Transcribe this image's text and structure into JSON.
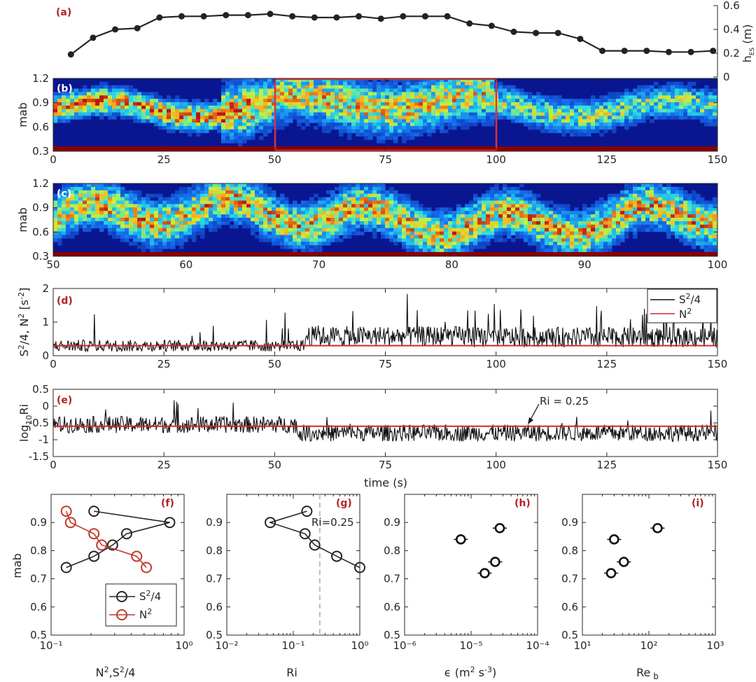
{
  "chart_data": [
    {
      "id": "a",
      "type": "line",
      "panel_label": "(a)",
      "ylabel": "h_ES (m)",
      "ylim": [
        0,
        0.6
      ],
      "yticks": [
        "0",
        "0.2",
        "0.4",
        "0.6"
      ],
      "xlim": [
        0,
        150
      ],
      "series": [
        {
          "x": [
            4,
            9,
            14,
            19,
            24,
            29,
            34,
            39,
            44,
            49,
            54,
            59,
            64,
            69,
            74,
            79,
            84,
            89,
            94,
            99,
            104,
            109,
            114,
            119,
            124,
            129,
            134,
            139,
            144,
            149
          ],
          "values": [
            0.19,
            0.33,
            0.4,
            0.41,
            0.5,
            0.51,
            0.51,
            0.52,
            0.52,
            0.53,
            0.51,
            0.5,
            0.5,
            0.51,
            0.49,
            0.51,
            0.51,
            0.51,
            0.45,
            0.43,
            0.38,
            0.37,
            0.37,
            0.32,
            0.22,
            0.22,
            0.22,
            0.21,
            0.21,
            0.22
          ]
        }
      ]
    },
    {
      "id": "b",
      "type": "heatmap",
      "panel_label": "(b)",
      "ylabel": "mab",
      "xlim": [
        0,
        150
      ],
      "ylim": [
        0.3,
        1.2
      ],
      "xticks": [
        "0",
        "25",
        "50",
        "75",
        "100",
        "125",
        "150"
      ],
      "yticks": [
        "0.3",
        "0.6",
        "0.9",
        "1.2"
      ],
      "highlight_box": [
        50,
        100
      ]
    },
    {
      "id": "c",
      "type": "heatmap",
      "panel_label": "(c)",
      "ylabel": "mab",
      "xlim": [
        50,
        100
      ],
      "ylim": [
        0.3,
        1.2
      ],
      "xticks": [
        "50",
        "60",
        "70",
        "80",
        "90",
        "100"
      ],
      "yticks": [
        "0.3",
        "0.6",
        "0.9",
        "1.2"
      ]
    },
    {
      "id": "d",
      "type": "line",
      "panel_label": "(d)",
      "ylabel": "S²/4, N² [s⁻²]",
      "xlim": [
        0,
        150
      ],
      "ylim": [
        0,
        2
      ],
      "xticks": [
        "0",
        "25",
        "50",
        "75",
        "100",
        "125",
        "150"
      ],
      "yticks": [
        "0",
        "1",
        "2"
      ],
      "legend": [
        "S²/4",
        "N²"
      ],
      "legend_position": "top-right",
      "n2_level": 0.3
    },
    {
      "id": "e",
      "type": "line",
      "panel_label": "(e)",
      "ylabel": "log₁₀Ri",
      "xlim": [
        0,
        150
      ],
      "ylim": [
        -1.5,
        0.5
      ],
      "xticks": [
        "0",
        "25",
        "50",
        "75",
        "100",
        "125",
        "150"
      ],
      "yticks": [
        "-1.5",
        "-1",
        "-0.5",
        "0",
        "0.5"
      ],
      "xlabel": "time (s)",
      "annotation": "Ri = 0.25",
      "ref_level": -0.6
    },
    {
      "id": "f",
      "type": "line",
      "panel_label": "(f)",
      "ylabel": "mab",
      "xlabel": "N²,S²/4",
      "xscale": "log",
      "xlim": [
        0.1,
        1
      ],
      "ylim": [
        0.5,
        1.0
      ],
      "xticks": [
        "10⁻¹",
        "10⁰"
      ],
      "yticks": [
        "0.5",
        "0.6",
        "0.7",
        "0.8",
        "0.9"
      ],
      "legend": [
        "S²/4",
        "N²"
      ],
      "legend_position": "bottom-right",
      "series": [
        {
          "name": "S²/4",
          "x": [
            0.21,
            0.78,
            0.37,
            0.29,
            0.21,
            0.13
          ],
          "values": [
            0.94,
            0.9,
            0.86,
            0.82,
            0.78,
            0.74
          ]
        },
        {
          "name": "N²",
          "x": [
            0.13,
            0.14,
            0.21,
            0.24,
            0.44,
            0.52
          ],
          "values": [
            0.94,
            0.9,
            0.86,
            0.82,
            0.78,
            0.74
          ]
        }
      ]
    },
    {
      "id": "g",
      "type": "line",
      "panel_label": "(g)",
      "xlabel": "Ri",
      "xscale": "log",
      "xlim": [
        0.01,
        1
      ],
      "ylim": [
        0.5,
        1.0
      ],
      "xticks": [
        "10⁻²",
        "10⁻¹",
        "10⁰"
      ],
      "yticks": [
        "0.5",
        "0.6",
        "0.7",
        "0.8",
        "0.9"
      ],
      "annotation": "Ri=0.25",
      "ref_x": 0.25,
      "series": [
        {
          "x": [
            0.16,
            0.045,
            0.15,
            0.21,
            0.45,
            1.0
          ],
          "values": [
            0.94,
            0.9,
            0.86,
            0.82,
            0.78,
            0.74
          ]
        }
      ]
    },
    {
      "id": "h",
      "type": "scatter",
      "panel_label": "(h)",
      "xlabel": "ϵ (m² s⁻³)",
      "xscale": "log",
      "xlim": [
        1e-06,
        0.0001
      ],
      "ylim": [
        0.5,
        1.0
      ],
      "xticks": [
        "10⁻⁶",
        "10⁻⁵",
        "10⁻⁴"
      ],
      "yticks": [
        "0.5",
        "0.6",
        "0.7",
        "0.8",
        "0.9"
      ],
      "series": [
        {
          "x": [
            2.7e-05,
            7e-06,
            2.3e-05,
            1.6e-05
          ],
          "values": [
            0.88,
            0.84,
            0.76,
            0.72
          ]
        }
      ]
    },
    {
      "id": "i",
      "type": "scatter",
      "panel_label": "(i)",
      "xlabel": "Re_b",
      "xscale": "log",
      "xlim": [
        10,
        1000
      ],
      "ylim": [
        0.5,
        1.0
      ],
      "xticks": [
        "10¹",
        "10²",
        "10³"
      ],
      "yticks": [
        "0.5",
        "0.6",
        "0.7",
        "0.8",
        "0.9"
      ],
      "series": [
        {
          "x": [
            135,
            30,
            42,
            27
          ],
          "values": [
            0.88,
            0.84,
            0.76,
            0.72
          ]
        }
      ]
    }
  ]
}
